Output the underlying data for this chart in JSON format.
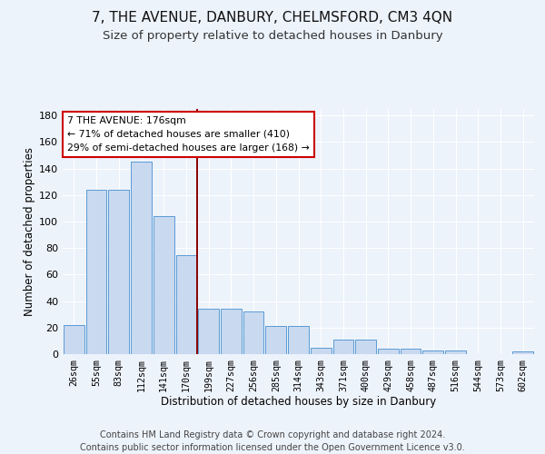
{
  "title": "7, THE AVENUE, DANBURY, CHELMSFORD, CM3 4QN",
  "subtitle": "Size of property relative to detached houses in Danbury",
  "xlabel": "Distribution of detached houses by size in Danbury",
  "ylabel": "Number of detached properties",
  "bar_labels": [
    "26sqm",
    "55sqm",
    "83sqm",
    "112sqm",
    "141sqm",
    "170sqm",
    "199sqm",
    "227sqm",
    "256sqm",
    "285sqm",
    "314sqm",
    "343sqm",
    "371sqm",
    "400sqm",
    "429sqm",
    "458sqm",
    "487sqm",
    "516sqm",
    "544sqm",
    "573sqm",
    "602sqm"
  ],
  "bar_heights": [
    22,
    124,
    124,
    145,
    104,
    75,
    34,
    34,
    32,
    21,
    21,
    5,
    11,
    11,
    4,
    4,
    3,
    3,
    0,
    0,
    2
  ],
  "bar_color": "#c8d9f0",
  "bar_edge_color": "#5b9bd5",
  "vline_x_idx": 5,
  "vline_color": "#8b0000",
  "annotation_text": "7 THE AVENUE: 176sqm\n← 71% of detached houses are smaller (410)\n29% of semi-detached houses are larger (168) →",
  "annotation_box_color": "#ffffff",
  "annotation_box_edge": "#cc0000",
  "ylim": [
    0,
    185
  ],
  "yticks": [
    0,
    20,
    40,
    60,
    80,
    100,
    120,
    140,
    160,
    180
  ],
  "footer_text": "Contains HM Land Registry data © Crown copyright and database right 2024.\nContains public sector information licensed under the Open Government Licence v3.0.",
  "bg_color": "#edf3fb",
  "plot_bg_color": "#edf3fb",
  "grid_color": "#ffffff",
  "title_fontsize": 11,
  "subtitle_fontsize": 9.5,
  "footer_fontsize": 7.0
}
